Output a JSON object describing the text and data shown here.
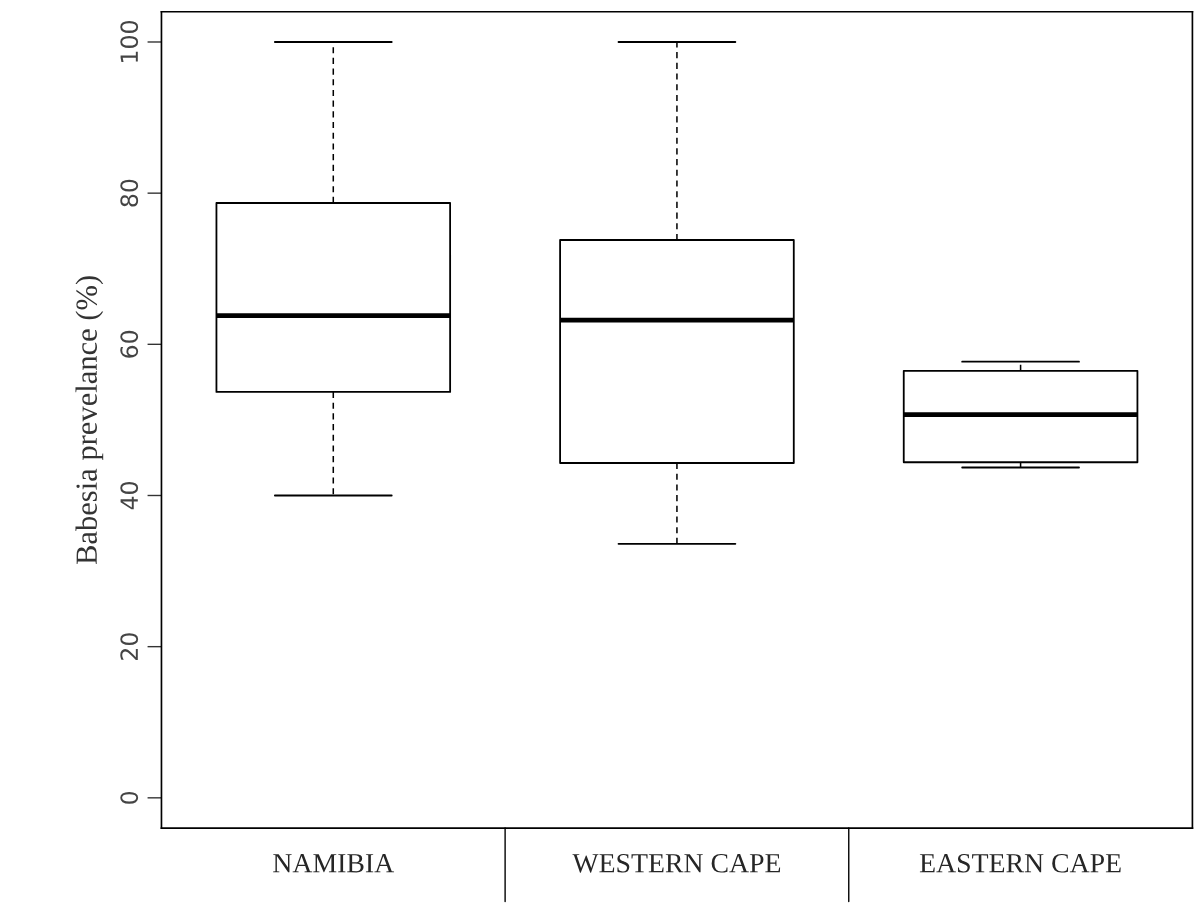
{
  "chart_data": {
    "type": "box",
    "ylabel": "Babesia prevelance (%)",
    "categories": [
      "NAMIBIA",
      "WESTERN CAPE",
      "EASTERN CAPE"
    ],
    "boxes": [
      {
        "low": 40,
        "q1": 53.7,
        "median": 63.8,
        "q3": 78.7,
        "high": 100
      },
      {
        "low": 33.6,
        "q1": 44.3,
        "median": 63.2,
        "q3": 73.8,
        "high": 100
      },
      {
        "low": 43.7,
        "q1": 44.4,
        "median": 50.7,
        "q3": 56.5,
        "high": 57.7
      }
    ],
    "ylim": [
      -4,
      104
    ],
    "yticks": [
      0,
      20,
      40,
      60,
      80,
      100
    ],
    "grid": false,
    "legend": false
  }
}
